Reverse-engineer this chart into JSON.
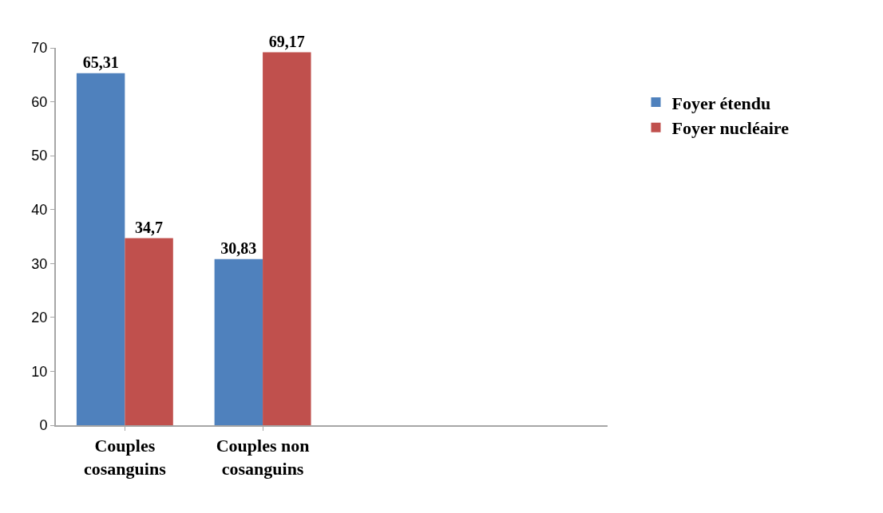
{
  "chart_data": {
    "type": "bar",
    "categories": [
      "Couples cosanguins",
      "Couples non cosanguins",
      null,
      null
    ],
    "series": [
      {
        "name": "Foyer étendu",
        "color": "#4f81bd",
        "values": [
          65.31,
          30.83,
          null,
          null
        ],
        "value_labels": [
          "65,31",
          "30,83",
          null,
          null
        ]
      },
      {
        "name": "Foyer nucléaire",
        "color": "#c0504d",
        "values": [
          34.7,
          69.17,
          null,
          null
        ],
        "value_labels": [
          "34,7",
          "69,17",
          null,
          null
        ]
      }
    ],
    "ylim": [
      0,
      70
    ],
    "yticks": [
      0,
      10,
      20,
      30,
      40,
      50,
      60,
      70
    ],
    "legend": "top right"
  }
}
